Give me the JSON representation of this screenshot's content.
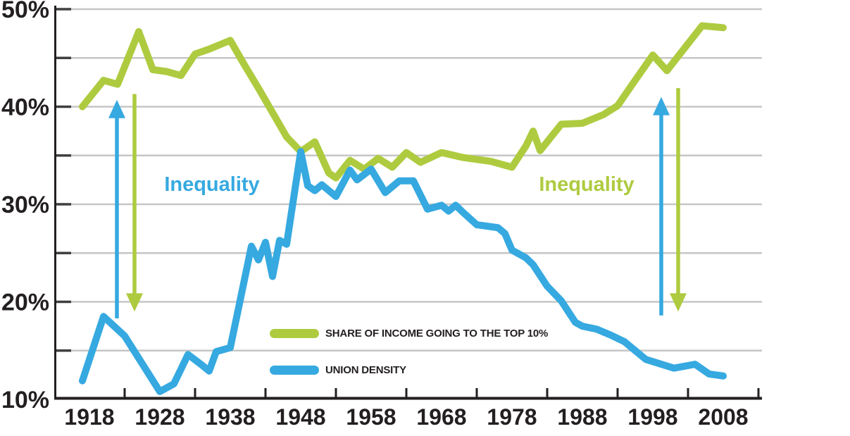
{
  "colors": {
    "green": "#aecb40",
    "blue": "#36a9e0",
    "text": "#231f20",
    "axis": "#231f20",
    "tick": "#3f3f3f",
    "gridline": "#c6c6c6"
  },
  "chart_data": {
    "type": "line",
    "title": "",
    "grid": true,
    "x_axis": {
      "range": [
        1913,
        2013
      ],
      "tick_labels": [
        "1918",
        "1928",
        "1938",
        "1948",
        "1958",
        "1968",
        "1978",
        "1988",
        "1998",
        "2008"
      ],
      "tick_label_years": [
        1918,
        1928,
        1938,
        1948,
        1958,
        1968,
        1978,
        1988,
        1998,
        2008
      ],
      "minor_tick_years": [
        1923,
        1933,
        1943,
        1953,
        1963,
        1973,
        1983,
        1993,
        2003,
        2013
      ]
    },
    "y_axis": {
      "unit": "%",
      "range": [
        10,
        50
      ],
      "tick_labels": [
        "50%",
        "40%",
        "30%",
        "20%",
        "10%"
      ],
      "tick_label_values": [
        50,
        40,
        30,
        20,
        10
      ],
      "gridline_values": [
        15,
        20,
        25,
        30,
        35,
        40,
        45,
        50
      ]
    },
    "legend": {
      "position": "inside-bottom-left",
      "items": [
        "SHARE OF INCOME GOING TO THE TOP 10%",
        "UNION DENSITY"
      ]
    },
    "series": [
      {
        "name": "SHARE OF INCOME GOING TO THE TOP 10%",
        "color": "#aecb40",
        "points": [
          [
            1917,
            40.0
          ],
          [
            1920,
            42.7
          ],
          [
            1922,
            42.3
          ],
          [
            1925,
            47.7
          ],
          [
            1927,
            43.8
          ],
          [
            1929,
            43.6
          ],
          [
            1931,
            43.2
          ],
          [
            1933,
            45.4
          ],
          [
            1935,
            45.9
          ],
          [
            1938,
            46.8
          ],
          [
            1940,
            44.3
          ],
          [
            1942,
            41.9
          ],
          [
            1944,
            39.4
          ],
          [
            1946,
            36.9
          ],
          [
            1948,
            35.4
          ],
          [
            1950,
            36.4
          ],
          [
            1952,
            33.2
          ],
          [
            1953,
            32.7
          ],
          [
            1955,
            34.5
          ],
          [
            1957,
            33.6
          ],
          [
            1959,
            34.7
          ],
          [
            1961,
            33.8
          ],
          [
            1963,
            35.3
          ],
          [
            1965,
            34.3
          ],
          [
            1968,
            35.3
          ],
          [
            1971,
            34.8
          ],
          [
            1975,
            34.4
          ],
          [
            1978,
            33.8
          ],
          [
            1980,
            36.0
          ],
          [
            1981,
            37.5
          ],
          [
            1982,
            35.5
          ],
          [
            1985,
            38.2
          ],
          [
            1988,
            38.3
          ],
          [
            1991,
            39.2
          ],
          [
            1993,
            40.1
          ],
          [
            1995,
            42.2
          ],
          [
            1998,
            45.3
          ],
          [
            2000,
            43.7
          ],
          [
            2005,
            48.3
          ],
          [
            2008,
            48.1
          ]
        ]
      },
      {
        "name": "UNION DENSITY",
        "color": "#36a9e0",
        "points": [
          [
            1917,
            11.9
          ],
          [
            1920,
            18.5
          ],
          [
            1923,
            16.5
          ],
          [
            1928,
            10.8
          ],
          [
            1930,
            11.6
          ],
          [
            1932,
            14.6
          ],
          [
            1934,
            13.5
          ],
          [
            1935,
            12.9
          ],
          [
            1936,
            14.9
          ],
          [
            1938,
            15.3
          ],
          [
            1941,
            25.7
          ],
          [
            1942,
            24.3
          ],
          [
            1943,
            26.1
          ],
          [
            1944,
            22.6
          ],
          [
            1945,
            26.3
          ],
          [
            1946,
            25.9
          ],
          [
            1948,
            35.4
          ],
          [
            1949,
            31.9
          ],
          [
            1950,
            31.4
          ],
          [
            1951,
            32.0
          ],
          [
            1953,
            30.8
          ],
          [
            1955,
            33.5
          ],
          [
            1956,
            32.5
          ],
          [
            1958,
            33.6
          ],
          [
            1960,
            31.2
          ],
          [
            1962,
            32.4
          ],
          [
            1964,
            32.4
          ],
          [
            1966,
            29.5
          ],
          [
            1968,
            29.9
          ],
          [
            1969,
            29.3
          ],
          [
            1970,
            29.9
          ],
          [
            1971,
            29.2
          ],
          [
            1973,
            27.9
          ],
          [
            1976,
            27.6
          ],
          [
            1977,
            27.0
          ],
          [
            1978,
            25.3
          ],
          [
            1980,
            24.5
          ],
          [
            1981,
            23.8
          ],
          [
            1983,
            21.6
          ],
          [
            1985,
            20.1
          ],
          [
            1987,
            17.9
          ],
          [
            1988,
            17.5
          ],
          [
            1990,
            17.2
          ],
          [
            1992,
            16.6
          ],
          [
            1994,
            15.9
          ],
          [
            1997,
            14.1
          ],
          [
            2001,
            13.2
          ],
          [
            2004,
            13.6
          ],
          [
            2006,
            12.6
          ],
          [
            2008,
            12.4
          ]
        ]
      }
    ],
    "annotations": {
      "labels": [
        {
          "text": "Inequality",
          "color": "#36a9e0",
          "year": 1935.4,
          "value": 32.1
        },
        {
          "text": "Inequality",
          "color": "#aecb40",
          "year": 1988.6,
          "value": 32.1
        }
      ],
      "arrows": [
        {
          "direction": "up",
          "color": "#36a9e0",
          "year": 1921.9,
          "from_value": 18.3,
          "to_value": 40.7
        },
        {
          "direction": "down",
          "color": "#aecb40",
          "year": 1924.4,
          "from_value": 41.3,
          "to_value": 19.0
        },
        {
          "direction": "up",
          "color": "#36a9e0",
          "year": 1999.2,
          "from_value": 18.6,
          "to_value": 41.0
        },
        {
          "direction": "down",
          "color": "#aecb40",
          "year": 2001.6,
          "from_value": 41.9,
          "to_value": 19.0
        }
      ]
    }
  }
}
